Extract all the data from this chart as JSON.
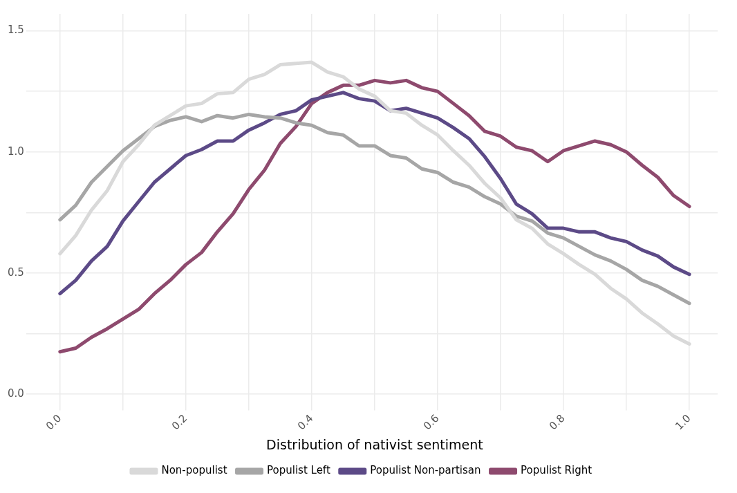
{
  "chart_data": {
    "type": "line",
    "xlabel": "Distribution of nativist sentiment",
    "x": [
      0,
      0.025,
      0.05,
      0.075,
      0.1,
      0.125,
      0.15,
      0.175,
      0.2,
      0.225,
      0.25,
      0.275,
      0.3,
      0.325,
      0.35,
      0.375,
      0.4,
      0.425,
      0.45,
      0.475,
      0.5,
      0.525,
      0.55,
      0.575,
      0.6,
      0.625,
      0.65,
      0.675,
      0.7,
      0.725,
      0.75,
      0.775,
      0.8,
      0.825,
      0.85,
      0.875,
      0.9,
      0.925,
      0.95,
      0.975,
      1.0
    ],
    "series": [
      {
        "name": "Non-populist",
        "color": "#d9d9d9",
        "values": [
          0.58,
          0.655,
          0.76,
          0.84,
          0.96,
          1.03,
          1.11,
          1.15,
          1.19,
          1.2,
          1.24,
          1.245,
          1.3,
          1.32,
          1.36,
          1.365,
          1.37,
          1.33,
          1.31,
          1.26,
          1.23,
          1.17,
          1.16,
          1.11,
          1.07,
          1.005,
          0.945,
          0.87,
          0.81,
          0.72,
          0.685,
          0.62,
          0.58,
          0.535,
          0.495,
          0.437,
          0.393,
          0.335,
          0.29,
          0.24,
          0.207
        ]
      },
      {
        "name": "Populist Left",
        "color": "#a6a6a6",
        "values": [
          0.72,
          0.78,
          0.875,
          0.94,
          1.005,
          1.055,
          1.105,
          1.13,
          1.145,
          1.125,
          1.15,
          1.14,
          1.155,
          1.145,
          1.14,
          1.12,
          1.11,
          1.08,
          1.07,
          1.025,
          1.025,
          0.985,
          0.975,
          0.93,
          0.915,
          0.875,
          0.855,
          0.815,
          0.785,
          0.735,
          0.715,
          0.665,
          0.645,
          0.61,
          0.575,
          0.55,
          0.515,
          0.47,
          0.445,
          0.41,
          0.375
        ]
      },
      {
        "name": "Populist Non-partisan",
        "color": "#5c4a87",
        "values": [
          0.415,
          0.47,
          0.55,
          0.61,
          0.715,
          0.795,
          0.875,
          0.93,
          0.985,
          1.01,
          1.045,
          1.045,
          1.09,
          1.12,
          1.155,
          1.17,
          1.215,
          1.23,
          1.245,
          1.22,
          1.21,
          1.17,
          1.18,
          1.16,
          1.14,
          1.1,
          1.055,
          0.98,
          0.89,
          0.785,
          0.745,
          0.685,
          0.685,
          0.67,
          0.67,
          0.645,
          0.63,
          0.595,
          0.57,
          0.525,
          0.495
        ]
      },
      {
        "name": "Populist Right",
        "color": "#8e4a6e",
        "values": [
          0.175,
          0.19,
          0.235,
          0.27,
          0.31,
          0.35,
          0.415,
          0.47,
          0.535,
          0.585,
          0.67,
          0.745,
          0.845,
          0.925,
          1.035,
          1.105,
          1.2,
          1.245,
          1.275,
          1.275,
          1.295,
          1.285,
          1.295,
          1.265,
          1.25,
          1.2,
          1.15,
          1.085,
          1.065,
          1.02,
          1.005,
          0.96,
          1.005,
          1.025,
          1.045,
          1.03,
          1.0,
          0.945,
          0.895,
          0.82,
          0.775
        ]
      }
    ],
    "xlim": [
      -0.045,
      1.045
    ],
    "xticks": [
      {
        "value": 0,
        "label": "0.0"
      },
      {
        "value": 0.1,
        "label": null
      },
      {
        "value": 0.2,
        "label": "0.2"
      },
      {
        "value": 0.3,
        "label": null
      },
      {
        "value": 0.4,
        "label": "0.4"
      },
      {
        "value": 0.5,
        "label": null
      },
      {
        "value": 0.6,
        "label": "0.6"
      },
      {
        "value": 0.7,
        "label": null
      },
      {
        "value": 0.8,
        "label": "0.8"
      },
      {
        "value": 0.9,
        "label": null
      },
      {
        "value": 1.0,
        "label": "1.0"
      }
    ],
    "ylim": [
      -0.05,
      1.57
    ],
    "yticks": [
      {
        "value": 0,
        "label": "0.0"
      },
      {
        "value": 0.25,
        "label": null
      },
      {
        "value": 0.5,
        "label": "0.5"
      },
      {
        "value": 0.75,
        "label": null
      },
      {
        "value": 1.0,
        "label": "1.0"
      },
      {
        "value": 1.25,
        "label": null
      },
      {
        "value": 1.5,
        "label": "1.5"
      }
    ],
    "grid": true,
    "legend": "bottom",
    "marker": "none",
    "line_style": "solid"
  }
}
